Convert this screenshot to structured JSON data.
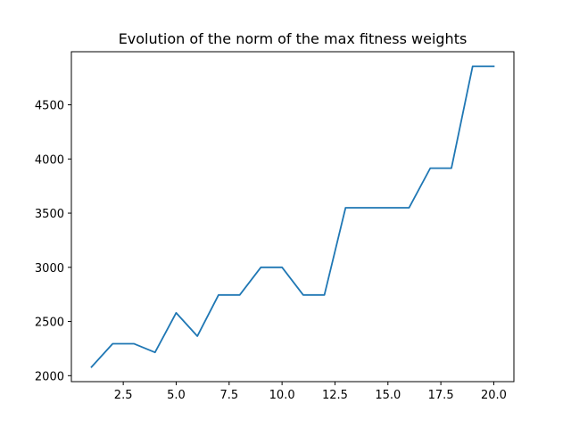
{
  "chart_data": {
    "type": "line",
    "title": "Evolution of the norm of the max fitness weights",
    "xlabel": "",
    "ylabel": "",
    "xlim": [
      0.05,
      20.95
    ],
    "ylim": [
      1945,
      4990
    ],
    "x_ticks": [
      2.5,
      5.0,
      7.5,
      10.0,
      12.5,
      15.0,
      17.5,
      20.0
    ],
    "x_tick_labels": [
      "2.5",
      "5.0",
      "7.5",
      "10.0",
      "12.5",
      "15.0",
      "17.5",
      "20.0"
    ],
    "y_ticks": [
      2000,
      2500,
      3000,
      3500,
      4000,
      4500
    ],
    "y_tick_labels": [
      "2000",
      "2500",
      "3000",
      "3500",
      "4000",
      "4500"
    ],
    "grid": false,
    "series": [
      {
        "color": "#1f77b4",
        "x": [
          1,
          2,
          3,
          4,
          5,
          6,
          7,
          8,
          9,
          10,
          11,
          12,
          13,
          14,
          15,
          16,
          17,
          18,
          19,
          20
        ],
        "y": [
          2080,
          2295,
          2295,
          2215,
          2580,
          2365,
          2745,
          2745,
          3000,
          3000,
          2745,
          2745,
          3550,
          3550,
          3550,
          3550,
          3915,
          3915,
          4855,
          4855
        ]
      }
    ]
  }
}
